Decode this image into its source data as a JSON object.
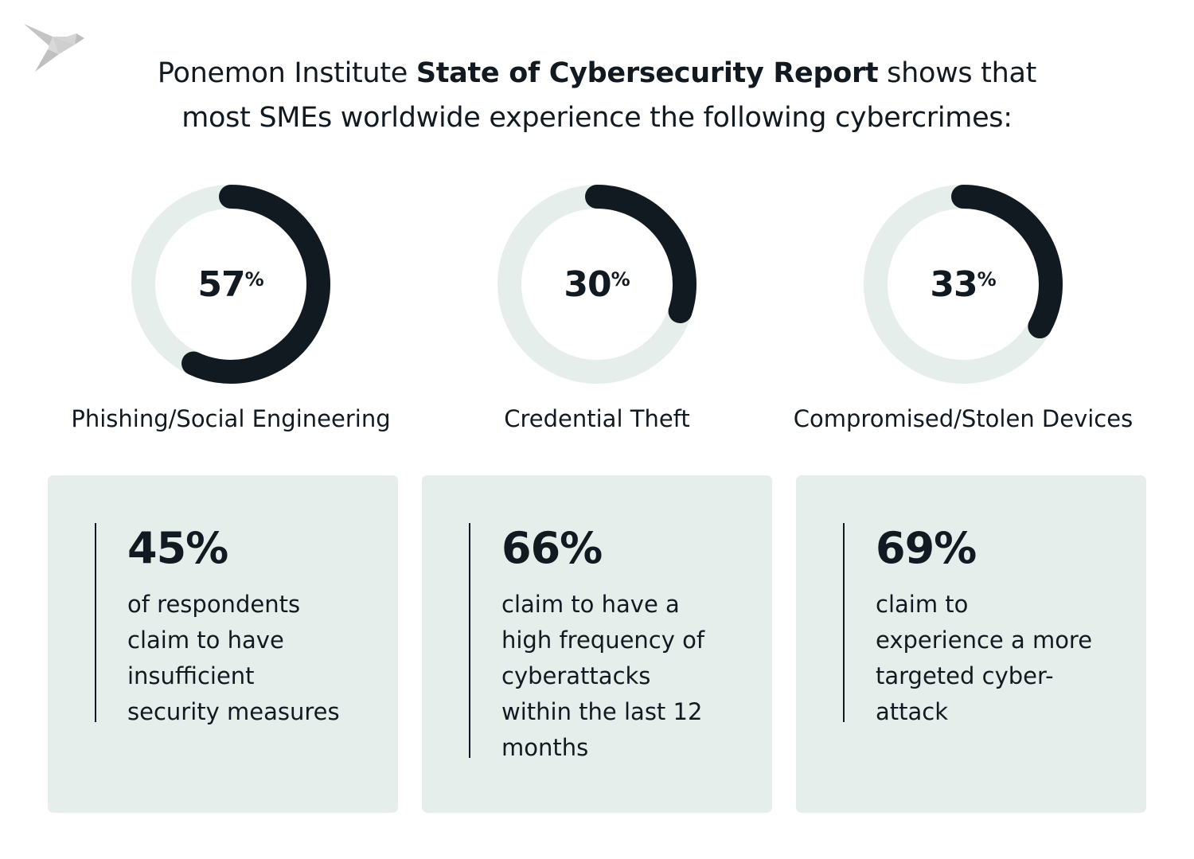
{
  "logo": {
    "name": "origami-bird-logo",
    "color": "#c8c8c8"
  },
  "title": {
    "prefix": "Ponemon Institute ",
    "bold": "State of Cybersecurity Report",
    "suffix": " shows that",
    "line2": "most SMEs worldwide experience the following cybercrimes:"
  },
  "colors": {
    "dark": "#121a21",
    "track": "#e6eeec",
    "card": "#e6eeec"
  },
  "chart_data": {
    "type": "pie",
    "variant": "donut",
    "categories": [
      "Phishing/Social Engineering",
      "Credential Theft",
      "Compromised/Stolen Devices"
    ],
    "values": [
      57,
      30,
      33
    ],
    "unit": "%",
    "display": [
      {
        "number": "57",
        "unit": "%",
        "label": "Phishing/Social Engineering"
      },
      {
        "number": "30",
        "unit": "%",
        "label": "Credential Theft"
      },
      {
        "number": "33",
        "unit": "%",
        "label": "Compromised/Stolen Devices"
      }
    ]
  },
  "cards": [
    {
      "value": "45%",
      "lines": [
        "of respondents",
        "claim to have",
        "insufficient",
        "security measures"
      ]
    },
    {
      "value": "66%",
      "lines": [
        "claim to have a",
        "high frequency of",
        "cyberattacks",
        "within the last 12",
        "months"
      ]
    },
    {
      "value": "69%",
      "lines": [
        "claim to",
        "experience a more",
        "targeted cyber-",
        "attack"
      ]
    }
  ]
}
